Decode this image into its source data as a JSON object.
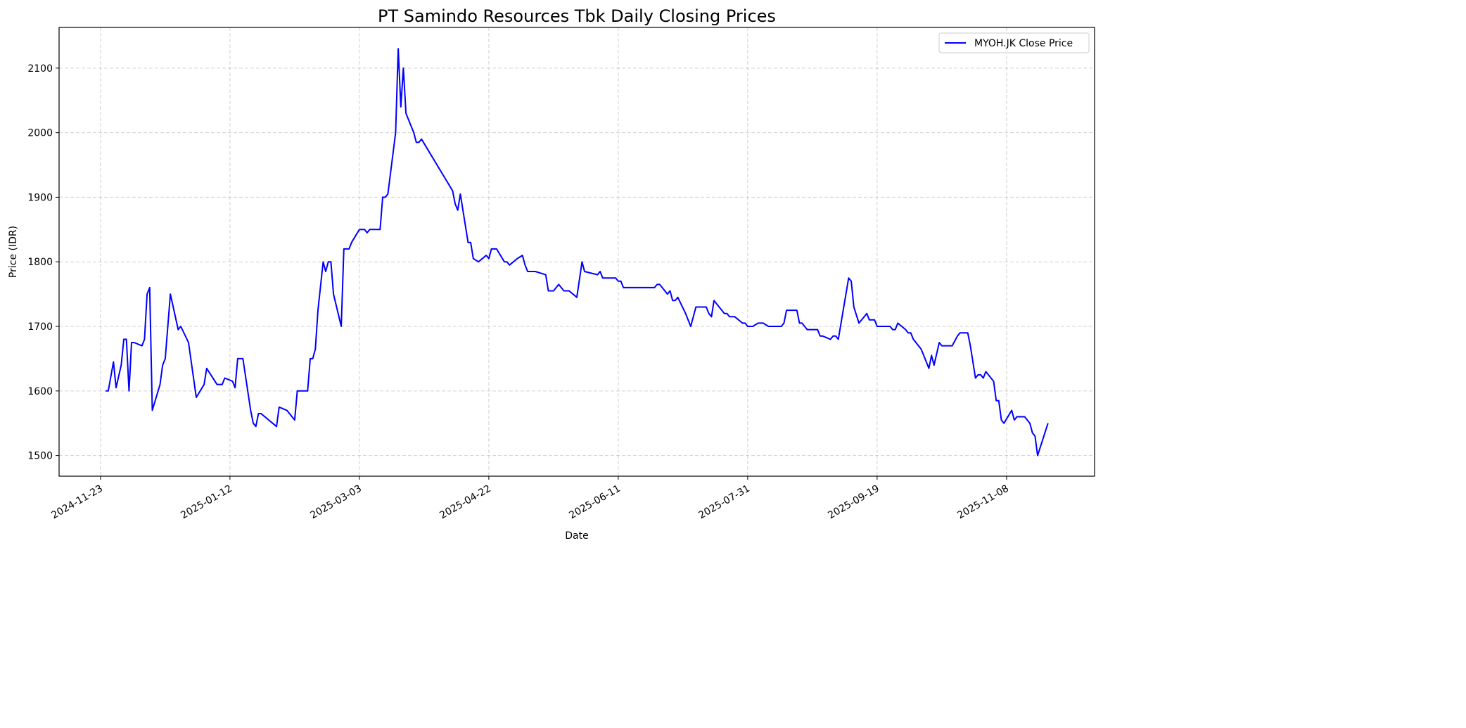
{
  "chart_data": {
    "type": "line",
    "title": "PT Samindo Resources Tbk Daily Closing Prices",
    "xlabel": "Date",
    "ylabel": "Price (IDR)",
    "xlim": [
      "2024-11-07",
      "2025-12-12"
    ],
    "ylim": [
      1468,
      2163
    ],
    "grid": true,
    "legend_position": "top-right",
    "x_ticks": [
      "2024-11-23",
      "2025-01-12",
      "2025-03-03",
      "2025-04-22",
      "2025-06-11",
      "2025-07-31",
      "2025-09-19",
      "2025-11-08"
    ],
    "y_ticks": [
      1500,
      1600,
      1700,
      1800,
      1900,
      2000,
      2100
    ],
    "series": [
      {
        "name": "MYOH.JK Close Price",
        "color": "#0000ff",
        "points": [
          [
            "2024-11-25",
            1600
          ],
          [
            "2024-11-26",
            1600
          ],
          [
            "2024-11-28",
            1645
          ],
          [
            "2024-11-29",
            1605
          ],
          [
            "2024-12-01",
            1640
          ],
          [
            "2024-12-02",
            1680
          ],
          [
            "2024-12-03",
            1680
          ],
          [
            "2024-12-04",
            1600
          ],
          [
            "2024-12-05",
            1675
          ],
          [
            "2024-12-06",
            1675
          ],
          [
            "2024-12-09",
            1670
          ],
          [
            "2024-12-10",
            1680
          ],
          [
            "2024-12-11",
            1750
          ],
          [
            "2024-12-12",
            1760
          ],
          [
            "2024-12-13",
            1570
          ],
          [
            "2024-12-16",
            1610
          ],
          [
            "2024-12-17",
            1640
          ],
          [
            "2024-12-18",
            1650
          ],
          [
            "2024-12-20",
            1750
          ],
          [
            "2024-12-23",
            1695
          ],
          [
            "2024-12-24",
            1700
          ],
          [
            "2024-12-27",
            1675
          ],
          [
            "2024-12-30",
            1590
          ],
          [
            "2025-01-02",
            1610
          ],
          [
            "2025-01-03",
            1635
          ],
          [
            "2025-01-07",
            1610
          ],
          [
            "2025-01-09",
            1610
          ],
          [
            "2025-01-10",
            1620
          ],
          [
            "2025-01-13",
            1615
          ],
          [
            "2025-01-14",
            1605
          ],
          [
            "2025-01-15",
            1650
          ],
          [
            "2025-01-17",
            1650
          ],
          [
            "2025-01-20",
            1570
          ],
          [
            "2025-01-21",
            1550
          ],
          [
            "2025-01-22",
            1545
          ],
          [
            "2025-01-23",
            1565
          ],
          [
            "2025-01-24",
            1565
          ],
          [
            "2025-01-30",
            1545
          ],
          [
            "2025-01-31",
            1575
          ],
          [
            "2025-02-03",
            1570
          ],
          [
            "2025-02-06",
            1555
          ],
          [
            "2025-02-07",
            1600
          ],
          [
            "2025-02-11",
            1600
          ],
          [
            "2025-02-12",
            1650
          ],
          [
            "2025-02-13",
            1650
          ],
          [
            "2025-02-14",
            1665
          ],
          [
            "2025-02-15",
            1725
          ],
          [
            "2025-02-17",
            1800
          ],
          [
            "2025-02-18",
            1785
          ],
          [
            "2025-02-19",
            1800
          ],
          [
            "2025-02-20",
            1800
          ],
          [
            "2025-02-21",
            1750
          ],
          [
            "2025-02-24",
            1700
          ],
          [
            "2025-02-25",
            1820
          ],
          [
            "2025-02-27",
            1820
          ],
          [
            "2025-02-28",
            1830
          ],
          [
            "2025-03-03",
            1850
          ],
          [
            "2025-03-05",
            1850
          ],
          [
            "2025-03-06",
            1845
          ],
          [
            "2025-03-07",
            1850
          ],
          [
            "2025-03-11",
            1850
          ],
          [
            "2025-03-12",
            1900
          ],
          [
            "2025-03-13",
            1900
          ],
          [
            "2025-03-14",
            1905
          ],
          [
            "2025-03-17",
            2000
          ],
          [
            "2025-03-18",
            2130
          ],
          [
            "2025-03-19",
            2040
          ],
          [
            "2025-03-20",
            2100
          ],
          [
            "2025-03-21",
            2030
          ],
          [
            "2025-03-24",
            2000
          ],
          [
            "2025-03-25",
            1985
          ],
          [
            "2025-03-26",
            1985
          ],
          [
            "2025-03-27",
            1990
          ],
          [
            "2025-04-08",
            1910
          ],
          [
            "2025-04-09",
            1890
          ],
          [
            "2025-04-10",
            1880
          ],
          [
            "2025-04-11",
            1905
          ],
          [
            "2025-04-14",
            1830
          ],
          [
            "2025-04-15",
            1830
          ],
          [
            "2025-04-16",
            1805
          ],
          [
            "2025-04-18",
            1800
          ],
          [
            "2025-04-21",
            1810
          ],
          [
            "2025-04-22",
            1805
          ],
          [
            "2025-04-23",
            1820
          ],
          [
            "2025-04-25",
            1820
          ],
          [
            "2025-04-28",
            1800
          ],
          [
            "2025-04-29",
            1800
          ],
          [
            "2025-04-30",
            1795
          ],
          [
            "2025-05-03",
            1805
          ],
          [
            "2025-05-05",
            1810
          ],
          [
            "2025-05-06",
            1795
          ],
          [
            "2025-05-07",
            1785
          ],
          [
            "2025-05-10",
            1785
          ],
          [
            "2025-05-14",
            1780
          ],
          [
            "2025-05-15",
            1755
          ],
          [
            "2025-05-17",
            1755
          ],
          [
            "2025-05-19",
            1765
          ],
          [
            "2025-05-21",
            1755
          ],
          [
            "2025-05-23",
            1755
          ],
          [
            "2025-05-26",
            1745
          ],
          [
            "2025-05-28",
            1800
          ],
          [
            "2025-05-29",
            1785
          ],
          [
            "2025-06-03",
            1780
          ],
          [
            "2025-06-04",
            1785
          ],
          [
            "2025-06-05",
            1775
          ],
          [
            "2025-06-10",
            1775
          ],
          [
            "2025-06-11",
            1770
          ],
          [
            "2025-06-12",
            1770
          ],
          [
            "2025-06-13",
            1760
          ],
          [
            "2025-06-25",
            1760
          ],
          [
            "2025-06-26",
            1765
          ],
          [
            "2025-06-27",
            1765
          ],
          [
            "2025-06-30",
            1750
          ],
          [
            "2025-07-01",
            1755
          ],
          [
            "2025-07-02",
            1740
          ],
          [
            "2025-07-03",
            1740
          ],
          [
            "2025-07-04",
            1745
          ],
          [
            "2025-07-07",
            1720
          ],
          [
            "2025-07-08",
            1710
          ],
          [
            "2025-07-09",
            1700
          ],
          [
            "2025-07-11",
            1730
          ],
          [
            "2025-07-15",
            1730
          ],
          [
            "2025-07-16",
            1720
          ],
          [
            "2025-07-17",
            1715
          ],
          [
            "2025-07-18",
            1740
          ],
          [
            "2025-07-22",
            1720
          ],
          [
            "2025-07-23",
            1720
          ],
          [
            "2025-07-24",
            1715
          ],
          [
            "2025-07-26",
            1715
          ],
          [
            "2025-07-29",
            1705
          ],
          [
            "2025-07-30",
            1705
          ],
          [
            "2025-07-31",
            1700
          ],
          [
            "2025-08-02",
            1700
          ],
          [
            "2025-08-04",
            1705
          ],
          [
            "2025-08-06",
            1705
          ],
          [
            "2025-08-08",
            1700
          ],
          [
            "2025-08-13",
            1700
          ],
          [
            "2025-08-14",
            1705
          ],
          [
            "2025-08-15",
            1725
          ],
          [
            "2025-08-19",
            1725
          ],
          [
            "2025-08-20",
            1705
          ],
          [
            "2025-08-21",
            1705
          ],
          [
            "2025-08-23",
            1695
          ],
          [
            "2025-08-27",
            1695
          ],
          [
            "2025-08-28",
            1685
          ],
          [
            "2025-08-29",
            1685
          ],
          [
            "2025-09-01",
            1680
          ],
          [
            "2025-09-02",
            1685
          ],
          [
            "2025-09-03",
            1685
          ],
          [
            "2025-09-04",
            1680
          ],
          [
            "2025-09-08",
            1775
          ],
          [
            "2025-09-09",
            1770
          ],
          [
            "2025-09-10",
            1730
          ],
          [
            "2025-09-12",
            1705
          ],
          [
            "2025-09-15",
            1720
          ],
          [
            "2025-09-16",
            1710
          ],
          [
            "2025-09-18",
            1710
          ],
          [
            "2025-09-19",
            1700
          ],
          [
            "2025-09-24",
            1700
          ],
          [
            "2025-09-25",
            1695
          ],
          [
            "2025-09-26",
            1695
          ],
          [
            "2025-09-27",
            1705
          ],
          [
            "2025-09-30",
            1695
          ],
          [
            "2025-10-01",
            1690
          ],
          [
            "2025-10-02",
            1690
          ],
          [
            "2025-10-03",
            1680
          ],
          [
            "2025-10-06",
            1665
          ],
          [
            "2025-10-07",
            1655
          ],
          [
            "2025-10-09",
            1635
          ],
          [
            "2025-10-10",
            1655
          ],
          [
            "2025-10-11",
            1640
          ],
          [
            "2025-10-13",
            1675
          ],
          [
            "2025-10-14",
            1670
          ],
          [
            "2025-10-18",
            1670
          ],
          [
            "2025-10-20",
            1685
          ],
          [
            "2025-10-21",
            1690
          ],
          [
            "2025-10-24",
            1690
          ],
          [
            "2025-10-25",
            1670
          ],
          [
            "2025-10-27",
            1620
          ],
          [
            "2025-10-28",
            1625
          ],
          [
            "2025-10-29",
            1625
          ],
          [
            "2025-10-30",
            1620
          ],
          [
            "2025-10-31",
            1630
          ],
          [
            "2025-11-03",
            1615
          ],
          [
            "2025-11-04",
            1585
          ],
          [
            "2025-11-05",
            1585
          ],
          [
            "2025-11-06",
            1555
          ],
          [
            "2025-11-07",
            1550
          ],
          [
            "2025-11-10",
            1570
          ],
          [
            "2025-11-11",
            1555
          ],
          [
            "2025-11-12",
            1560
          ],
          [
            "2025-11-15",
            1560
          ],
          [
            "2025-11-17",
            1550
          ],
          [
            "2025-11-18",
            1535
          ],
          [
            "2025-11-19",
            1530
          ],
          [
            "2025-11-20",
            1500
          ],
          [
            "2025-11-24",
            1550
          ]
        ]
      }
    ]
  }
}
